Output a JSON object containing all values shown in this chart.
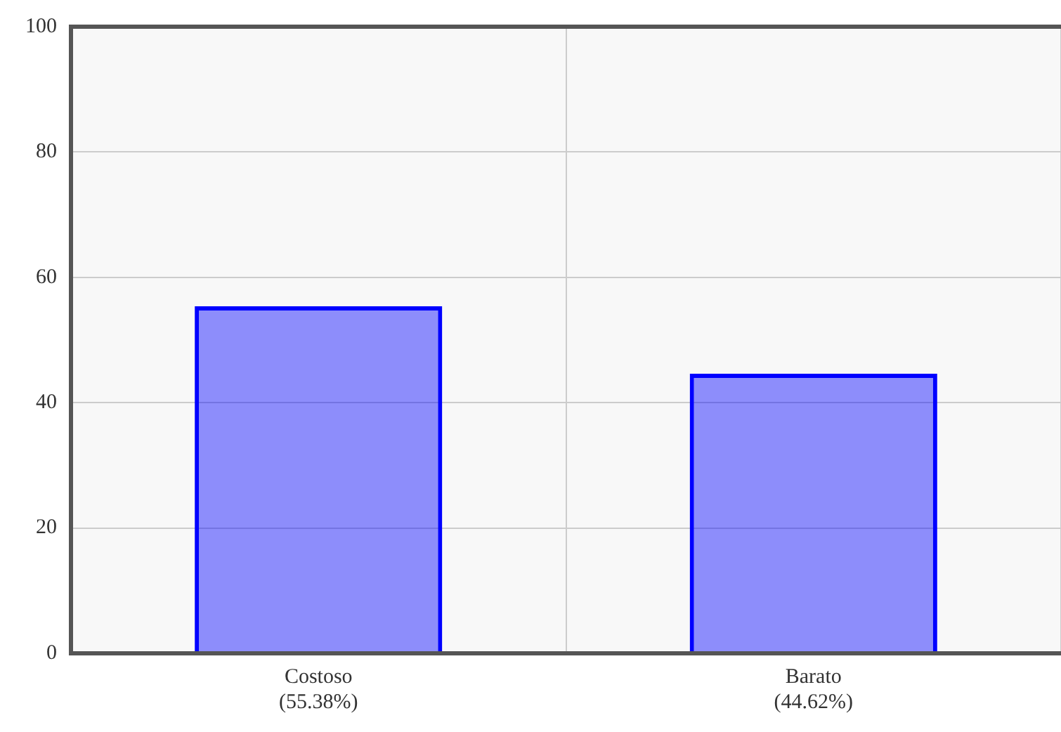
{
  "chart_data": {
    "type": "bar",
    "categories": [
      "Costoso\n(55.38%)",
      "Barato\n(44.62%)"
    ],
    "values": [
      55.38,
      44.62
    ],
    "color": "#0000ff",
    "ylim": [
      0,
      100
    ],
    "yticks": [
      0,
      20,
      40,
      60,
      80,
      100
    ],
    "grid": true
  }
}
